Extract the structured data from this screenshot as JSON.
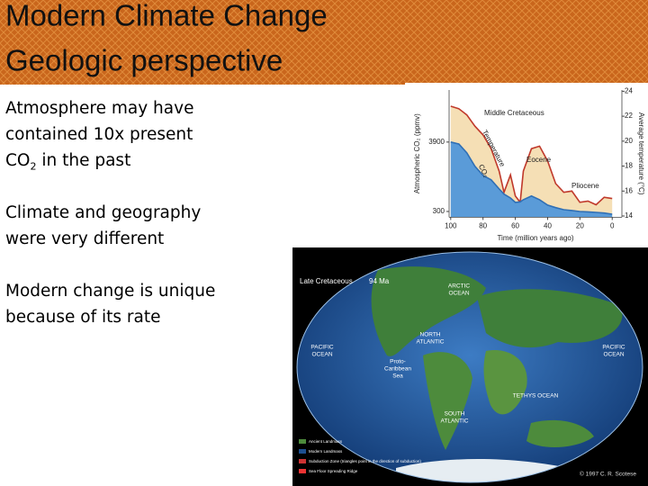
{
  "slide": {
    "title": [
      "Modern Climate Change",
      "Geologic perspective"
    ],
    "points": [
      {
        "text": "Atmosphere may have contained 10x present CO",
        "sub": "2",
        "after": " in the past"
      },
      {
        "text": "Climate and geography were very different"
      },
      {
        "text": "Modern change is unique because of its rate"
      }
    ]
  },
  "chart_data": {
    "type": "area",
    "x_label": "Time (million years ago)",
    "y_label": "Atmospheric CO₂ (ppmv)",
    "y2_label": "Average temperature (°C)",
    "x": [
      100,
      95,
      90,
      85,
      80,
      75,
      70,
      67,
      63,
      60,
      57,
      55,
      50,
      45,
      40,
      35,
      30,
      25,
      20,
      15,
      10,
      5,
      0
    ],
    "xlim": [
      101,
      -6
    ],
    "xticks": [
      100,
      80,
      60,
      40,
      20,
      0
    ],
    "ylim": [
      0,
      6600
    ],
    "yticks": [
      300,
      3900
    ],
    "y2lim": [
      13.9,
      24.1
    ],
    "y2ticks": [
      14,
      16,
      18,
      20,
      22,
      24
    ],
    "series": [
      {
        "name": "Temperature",
        "axis": "y2",
        "color": "#c0392b",
        "fill": "#f5dfb5",
        "values": [
          22.8,
          22.6,
          22.1,
          21.2,
          20.5,
          19.4,
          17.6,
          15.9,
          17.3,
          15.6,
          15.1,
          17.6,
          19.4,
          19.6,
          18.4,
          16.6,
          15.9,
          16.0,
          15.1,
          15.2,
          14.9,
          15.5,
          15.4
        ]
      },
      {
        "name": "CO₂",
        "axis": "y",
        "color": "#2f6fb5",
        "fill": "#5a9bd8",
        "values": [
          3900,
          3800,
          3340,
          2640,
          2170,
          1940,
          1470,
          1200,
          1000,
          770,
          800,
          910,
          1100,
          910,
          630,
          500,
          390,
          350,
          300,
          280,
          250,
          220,
          160
        ]
      }
    ],
    "annotations": [
      "Middle Cretaceous",
      "Eocene",
      "Pliocene"
    ]
  },
  "map": {
    "title": "Late Cretaceous",
    "age": "94 Ma",
    "labels": [
      [
        "ARCTIC",
        "OCEAN"
      ],
      [
        "PACIFIC",
        "OCEAN"
      ],
      [
        "NORTH",
        "ATLANTIC"
      ],
      [
        "Proto-",
        "Caribbean",
        "Sea"
      ],
      [
        "TETHYS OCEAN"
      ],
      [
        "SOUTH",
        "ATLANTIC"
      ],
      [
        "PACIFIC",
        "OCEAN"
      ]
    ],
    "legend": [
      "Ancient Landmass",
      "Modern Landmass",
      "Subduction Zone (triangles point in the direction of subduction)",
      "Sea Floor Spreading Ridge"
    ],
    "credit": "© 1997 C. R. Scotese"
  }
}
